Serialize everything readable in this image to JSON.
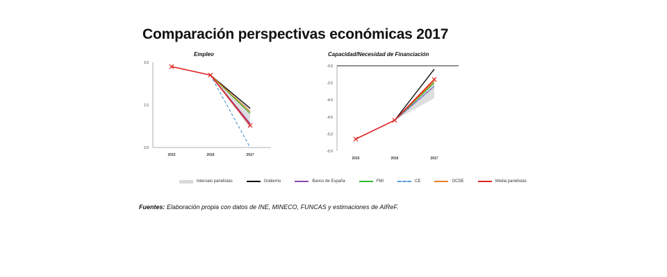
{
  "page": {
    "title": "Comparación perspectivas económicas 2017",
    "sources_label": "Fuentes:",
    "sources_text": " Elaboración propia con datos de INE, MINECO, FUNCAS y estimaciones de AIReF."
  },
  "chart_data": [
    {
      "type": "line",
      "title": "Empleo",
      "categories": [
        "2015",
        "2016",
        "2017"
      ],
      "ylim": [
        2.0,
        3.0
      ],
      "yticks": [
        "3.0",
        "2.5",
        "2.0"
      ],
      "band": {
        "name": "Intervalo panelistas",
        "lower": [
          null,
          2.85,
          2.22
        ],
        "upper": [
          null,
          2.85,
          2.47
        ],
        "color": "#d9d9d9"
      },
      "series": [
        {
          "name": "Gobierno",
          "values": [
            null,
            2.85,
            2.46
          ],
          "color": "#000000",
          "dash": false
        },
        {
          "name": "Banco de España",
          "values": [
            null,
            2.85,
            2.28
          ],
          "color": "#8e44ad",
          "dash": false
        },
        {
          "name": "FMI",
          "values": [
            null,
            2.85,
            2.4
          ],
          "color": "#2eb82e",
          "dash": false
        },
        {
          "name": "CE",
          "values": [
            null,
            2.85,
            2.0
          ],
          "color": "#5b9bd5",
          "dash": true
        },
        {
          "name": "OCDE",
          "values": [
            null,
            2.85,
            2.42
          ],
          "color": "#e67e22",
          "dash": false
        },
        {
          "name": "Media panelistas",
          "values": [
            2.95,
            2.85,
            2.26
          ],
          "color": "#e02020",
          "dash": false,
          "marker": true
        }
      ]
    },
    {
      "type": "line",
      "title": "Capacidad/Necesidad de Financiación",
      "categories": [
        "2015",
        "2016",
        "2017"
      ],
      "ylim": [
        -5.5,
        -3.0
      ],
      "yticks": [
        "-3.0",
        "-3.5",
        "-4.0",
        "-4.5",
        "-5.0",
        "-5.5"
      ],
      "band": {
        "name": "Intervalo panelistas",
        "lower": [
          null,
          -4.6,
          -3.95
        ],
        "upper": [
          null,
          -4.6,
          -3.45
        ],
        "color": "#d9d9d9"
      },
      "series": [
        {
          "name": "Gobierno",
          "values": [
            null,
            -4.6,
            -3.1
          ],
          "color": "#000000",
          "dash": false
        },
        {
          "name": "Banco de España",
          "values": [
            null,
            -4.6,
            -3.6
          ],
          "color": "#8e44ad",
          "dash": false
        },
        {
          "name": "FMI",
          "values": [
            null,
            -4.6,
            -3.5
          ],
          "color": "#2eb82e",
          "dash": false
        },
        {
          "name": "CE",
          "values": [
            null,
            -4.6,
            -3.6
          ],
          "color": "#5b9bd5",
          "dash": true
        },
        {
          "name": "OCDE",
          "values": [
            null,
            -4.6,
            -3.45
          ],
          "color": "#e67e22",
          "dash": false
        },
        {
          "name": "Media panelistas",
          "values": [
            -5.15,
            -4.6,
            -3.4
          ],
          "color": "#e02020",
          "dash": false,
          "marker": true
        }
      ]
    }
  ]
}
